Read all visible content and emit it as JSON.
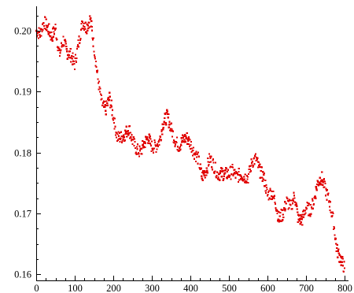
{
  "chart_data": {
    "type": "scatter",
    "title": "",
    "xlabel": "",
    "ylabel": "",
    "xlim": [
      0,
      800
    ],
    "ylim": [
      0.159,
      0.2035
    ],
    "grid": false,
    "legend": "none",
    "x_ticks": [
      0,
      100,
      200,
      300,
      400,
      500,
      600,
      700,
      800
    ],
    "x_tick_labels": [
      "0",
      "100",
      "200",
      "300",
      "400",
      "500",
      "600",
      "700",
      "800"
    ],
    "y_ticks": [
      0.16,
      0.17,
      0.18,
      0.19,
      0.2
    ],
    "y_tick_labels": [
      "0.16",
      "0.17",
      "0.18",
      "0.19",
      "0.20"
    ],
    "series": [
      {
        "color": "#e00000",
        "x": [
          0,
          10,
          20,
          30,
          40,
          50,
          60,
          70,
          80,
          90,
          100,
          110,
          120,
          130,
          140,
          150,
          160,
          170,
          180,
          190,
          200,
          210,
          220,
          230,
          240,
          250,
          260,
          270,
          280,
          290,
          300,
          310,
          320,
          330,
          340,
          350,
          360,
          370,
          380,
          390,
          400,
          410,
          420,
          430,
          440,
          450,
          460,
          470,
          480,
          490,
          500,
          510,
          520,
          530,
          540,
          550,
          560,
          570,
          580,
          590,
          600,
          610,
          620,
          630,
          640,
          650,
          660,
          670,
          680,
          690,
          700,
          710,
          720,
          730,
          740,
          750,
          760,
          770,
          780,
          790,
          800
        ],
        "y": [
          0.2,
          0.1995,
          0.2015,
          0.2005,
          0.199,
          0.2005,
          0.196,
          0.1985,
          0.1965,
          0.196,
          0.1945,
          0.198,
          0.2015,
          0.2005,
          0.202,
          0.1975,
          0.192,
          0.188,
          0.187,
          0.189,
          0.186,
          0.1825,
          0.1825,
          0.183,
          0.184,
          0.182,
          0.1805,
          0.18,
          0.1815,
          0.1825,
          0.181,
          0.181,
          0.182,
          0.185,
          0.186,
          0.184,
          0.182,
          0.181,
          0.182,
          0.1825,
          0.1815,
          0.18,
          0.179,
          0.176,
          0.177,
          0.179,
          0.178,
          0.1765,
          0.1765,
          0.1765,
          0.1765,
          0.177,
          0.176,
          0.1765,
          0.176,
          0.176,
          0.1785,
          0.179,
          0.177,
          0.176,
          0.173,
          0.1735,
          0.172,
          0.169,
          0.17,
          0.172,
          0.171,
          0.173,
          0.169,
          0.169,
          0.171,
          0.1705,
          0.172,
          0.175,
          0.176,
          0.174,
          0.172,
          0.169,
          0.164,
          0.1625,
          0.161
        ]
      }
    ]
  }
}
